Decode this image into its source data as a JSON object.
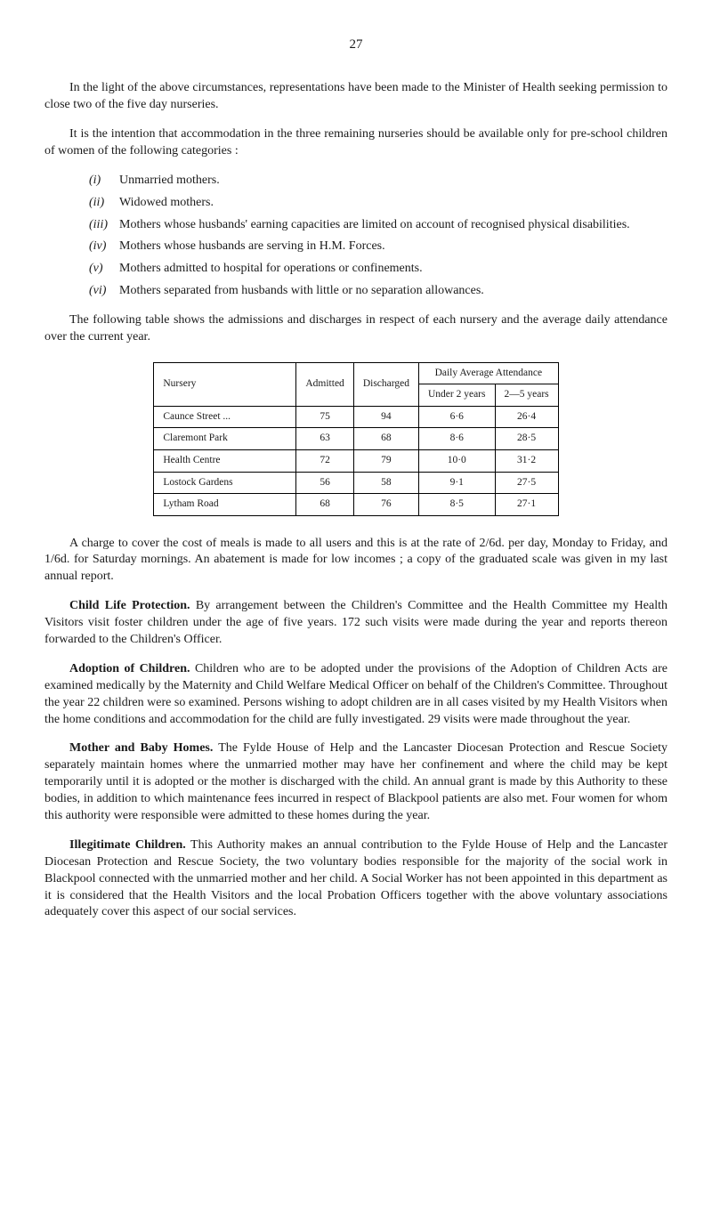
{
  "page_number": "27",
  "para1": "In the light of the above circumstances, representations have been made to the Minister of Health seeking permission to close two of the five day nurseries.",
  "para2": "It is the intention that accommodation in the three remaining nurseries should be available only for pre-school children of women of the following categories :",
  "list": [
    {
      "marker": "(i)",
      "text": "Unmarried mothers."
    },
    {
      "marker": "(ii)",
      "text": "Widowed mothers."
    },
    {
      "marker": "(iii)",
      "text": "Mothers whose husbands' earning capacities are limited on account of recognised physical disabilities."
    },
    {
      "marker": "(iv)",
      "text": "Mothers whose husbands are serving in H.M. Forces."
    },
    {
      "marker": "(v)",
      "text": "Mothers admitted to hospital for operations or confinements."
    },
    {
      "marker": "(vi)",
      "text": "Mothers separated from husbands with little or no separation allowances."
    }
  ],
  "para3": "The following table shows the admissions and discharges in respect of each nursery and the average daily attendance over the current year.",
  "table": {
    "headers": {
      "nursery": "Nursery",
      "admitted": "Admitted",
      "discharged": "Discharged",
      "daily": "Daily Average Attendance",
      "under2": "Under 2 years",
      "y25": "2—5 years"
    },
    "rows": [
      {
        "nursery": "Caunce Street ...",
        "admitted": "75",
        "discharged": "94",
        "under2": "6·6",
        "y25": "26·4"
      },
      {
        "nursery": "Claremont Park",
        "admitted": "63",
        "discharged": "68",
        "under2": "8·6",
        "y25": "28·5"
      },
      {
        "nursery": "Health Centre",
        "admitted": "72",
        "discharged": "79",
        "under2": "10·0",
        "y25": "31·2"
      },
      {
        "nursery": "Lostock Gardens",
        "admitted": "56",
        "discharged": "58",
        "under2": "9·1",
        "y25": "27·5"
      },
      {
        "nursery": "Lytham Road",
        "admitted": "68",
        "discharged": "76",
        "under2": "8·5",
        "y25": "27·1"
      }
    ]
  },
  "para4": "A charge to cover the cost of meals is made to all users and this is at the rate of 2/6d. per day, Monday to Friday, and 1/6d. for Saturday mornings. An abatement is made for low incomes ; a copy of the graduated scale was given in my last annual report.",
  "sections": {
    "child_life": {
      "title": "Child Life Protection.",
      "body": "By arrangement between the Children's Committee and the Health Committee my Health Visitors visit foster children under the age of five years. 172 such visits were made during the year and reports thereon forwarded to the Children's Officer."
    },
    "adoption": {
      "title": "Adoption of Children.",
      "body": "Children who are to be adopted under the provisions of the Adoption of Children Acts are examined medically by the Maternity and Child Welfare Medical Officer on behalf of the Children's Committee. Throughout the year 22 children were so examined. Persons wishing to adopt children are in all cases visited by my Health Visitors when the home conditions and accommodation for the child are fully investigated. 29 visits were made throughout the year."
    },
    "mother_baby": {
      "title": "Mother and Baby Homes.",
      "body": "The Fylde House of Help and the Lancaster Diocesan Protection and Rescue Society separately maintain homes where the unmarried mother may have her confinement and where the child may be kept temporarily until it is adopted or the mother is discharged with the child. An annual grant is made by this Authority to these bodies, in addition to which maintenance fees incurred in respect of Blackpool patients are also met. Four women for whom this authority were responsible were admitted to these homes during the year."
    },
    "illegitimate": {
      "title": "Illegitimate Children.",
      "body": "This Authority makes an annual contribution to the Fylde House of Help and the Lancaster Diocesan Protection and Rescue Society, the two voluntary bodies responsible for the majority of the social work in Blackpool connected with the unmarried mother and her child. A Social Worker has not been appointed in this department as it is considered that the Health Visitors and the local Probation Officers together with the above voluntary associations adequately cover this aspect of our social services."
    }
  }
}
